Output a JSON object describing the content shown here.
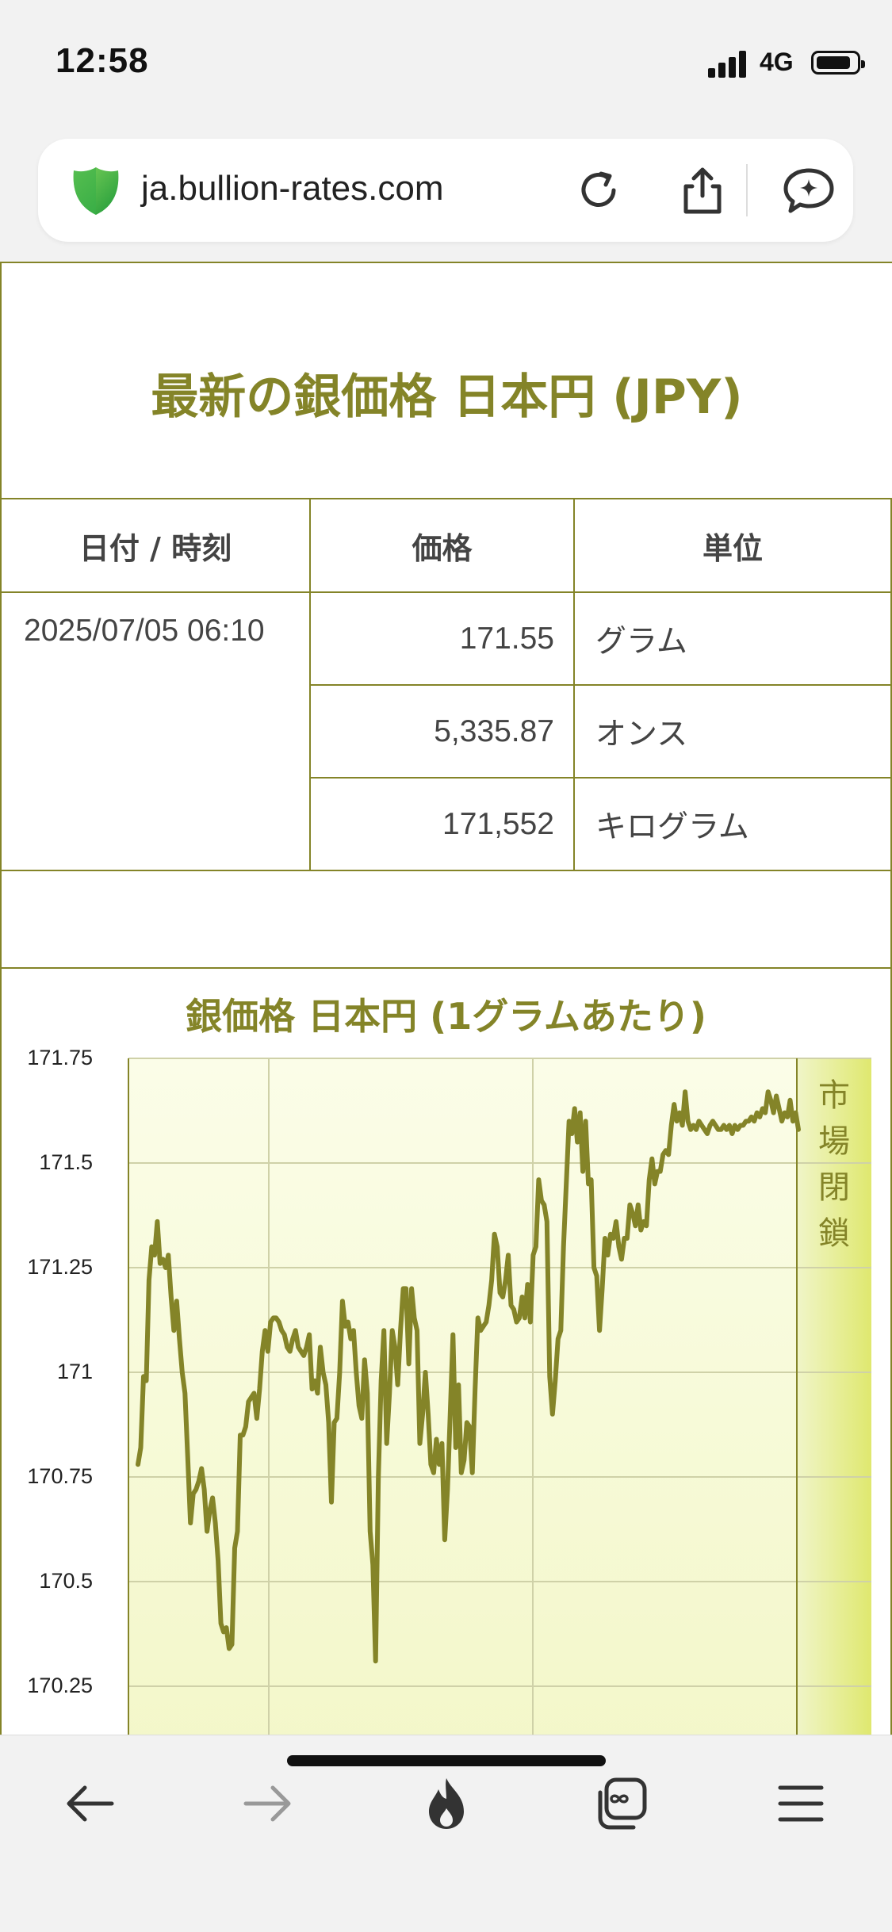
{
  "status_bar": {
    "time": "12:58",
    "network": "4G"
  },
  "browser": {
    "url": "ja.bullion-rates.com",
    "icons": [
      "shield-icon",
      "reload-icon",
      "share-icon",
      "assistant-icon"
    ]
  },
  "page": {
    "title": "最新の銀価格 日本円 (JPY)",
    "table": {
      "headers": [
        "日付 / 時刻",
        "価格",
        "単位"
      ],
      "date": "2025/07/05 06:10",
      "rows": [
        {
          "price": "171.55",
          "unit": "グラム"
        },
        {
          "price": "5,335.87",
          "unit": "オンス"
        },
        {
          "price": "171,552",
          "unit": "キログラム"
        }
      ]
    },
    "accent_color": "#848428"
  },
  "chart_data": {
    "type": "line",
    "title": "銀価格 日本円 (1グラムあたり)",
    "annotation": "市場閉鎖",
    "y_ticks": [
      "171.75",
      "171.5",
      "171.25",
      "171",
      "170.75",
      "170.5",
      "170.25"
    ],
    "ylim": [
      170.12,
      171.75
    ],
    "grid": true,
    "series_color": "#848428",
    "series": [
      {
        "values": [
          170.78,
          170.82,
          170.99,
          170.98,
          171.22,
          171.3,
          171.28,
          171.36,
          171.26,
          171.27,
          171.25,
          171.28,
          171.18,
          171.1,
          171.17,
          171.08,
          171.0,
          170.95,
          170.8,
          170.64,
          170.71,
          170.72,
          170.74,
          170.77,
          170.72,
          170.62,
          170.67,
          170.7,
          170.64,
          170.55,
          170.4,
          170.38,
          170.39,
          170.34,
          170.35,
          170.58,
          170.62,
          170.85,
          170.85,
          170.87,
          170.93,
          170.94,
          170.95,
          170.89,
          170.96,
          171.05,
          171.1,
          171.05,
          171.12,
          171.13,
          171.13,
          171.12,
          171.1,
          171.09,
          171.06,
          171.05,
          171.08,
          171.1,
          171.06,
          171.05,
          171.04,
          171.06,
          171.09,
          170.96,
          170.98,
          170.95,
          171.06,
          171.0,
          170.97,
          170.88,
          170.69,
          170.88,
          170.89,
          171.0,
          171.17,
          171.11,
          171.12,
          171.08,
          171.1,
          171.0,
          170.92,
          170.89,
          171.03,
          170.95,
          170.62,
          170.54,
          170.31,
          170.75,
          170.98,
          171.1,
          170.83,
          170.95,
          171.1,
          171.06,
          170.97,
          171.1,
          171.2,
          171.2,
          171.02,
          171.2,
          171.13,
          171.1,
          170.83,
          170.9,
          171.0,
          170.9,
          170.78,
          170.76,
          170.84,
          170.78,
          170.83,
          170.6,
          170.72,
          170.9,
          171.09,
          170.82,
          170.97,
          170.76,
          170.79,
          170.88,
          170.87,
          170.76,
          170.96,
          171.13,
          171.1,
          171.11,
          171.12,
          171.16,
          171.22,
          171.33,
          171.3,
          171.19,
          171.18,
          171.22,
          171.28,
          171.16,
          171.15,
          171.12,
          171.13,
          171.18,
          171.13,
          171.21,
          171.12,
          171.28,
          171.3,
          171.46,
          171.41,
          171.4,
          171.36,
          170.99,
          170.9,
          170.98,
          171.08,
          171.1,
          171.3,
          171.45,
          171.6,
          171.57,
          171.63,
          171.55,
          171.62,
          171.48,
          171.6,
          171.45,
          171.46,
          171.25,
          171.23,
          171.1,
          171.2,
          171.32,
          171.28,
          171.33,
          171.32,
          171.36,
          171.3,
          171.27,
          171.32,
          171.32,
          171.4,
          171.38,
          171.35,
          171.4,
          171.34,
          171.36,
          171.35,
          171.46,
          171.51,
          171.45,
          171.48,
          171.48,
          171.52,
          171.53,
          171.52,
          171.59,
          171.64,
          171.6,
          171.62,
          171.59,
          171.67,
          171.6,
          171.58,
          171.59,
          171.58,
          171.6,
          171.59,
          171.58,
          171.57,
          171.59,
          171.6,
          171.59,
          171.58,
          171.58,
          171.59,
          171.58,
          171.59,
          171.57,
          171.59,
          171.58,
          171.59,
          171.59,
          171.6,
          171.6,
          171.61,
          171.6,
          171.62,
          171.61,
          171.63,
          171.62,
          171.67,
          171.65,
          171.62,
          171.66,
          171.63,
          171.6,
          171.62,
          171.61,
          171.65,
          171.6,
          171.62,
          171.58
        ]
      }
    ]
  }
}
